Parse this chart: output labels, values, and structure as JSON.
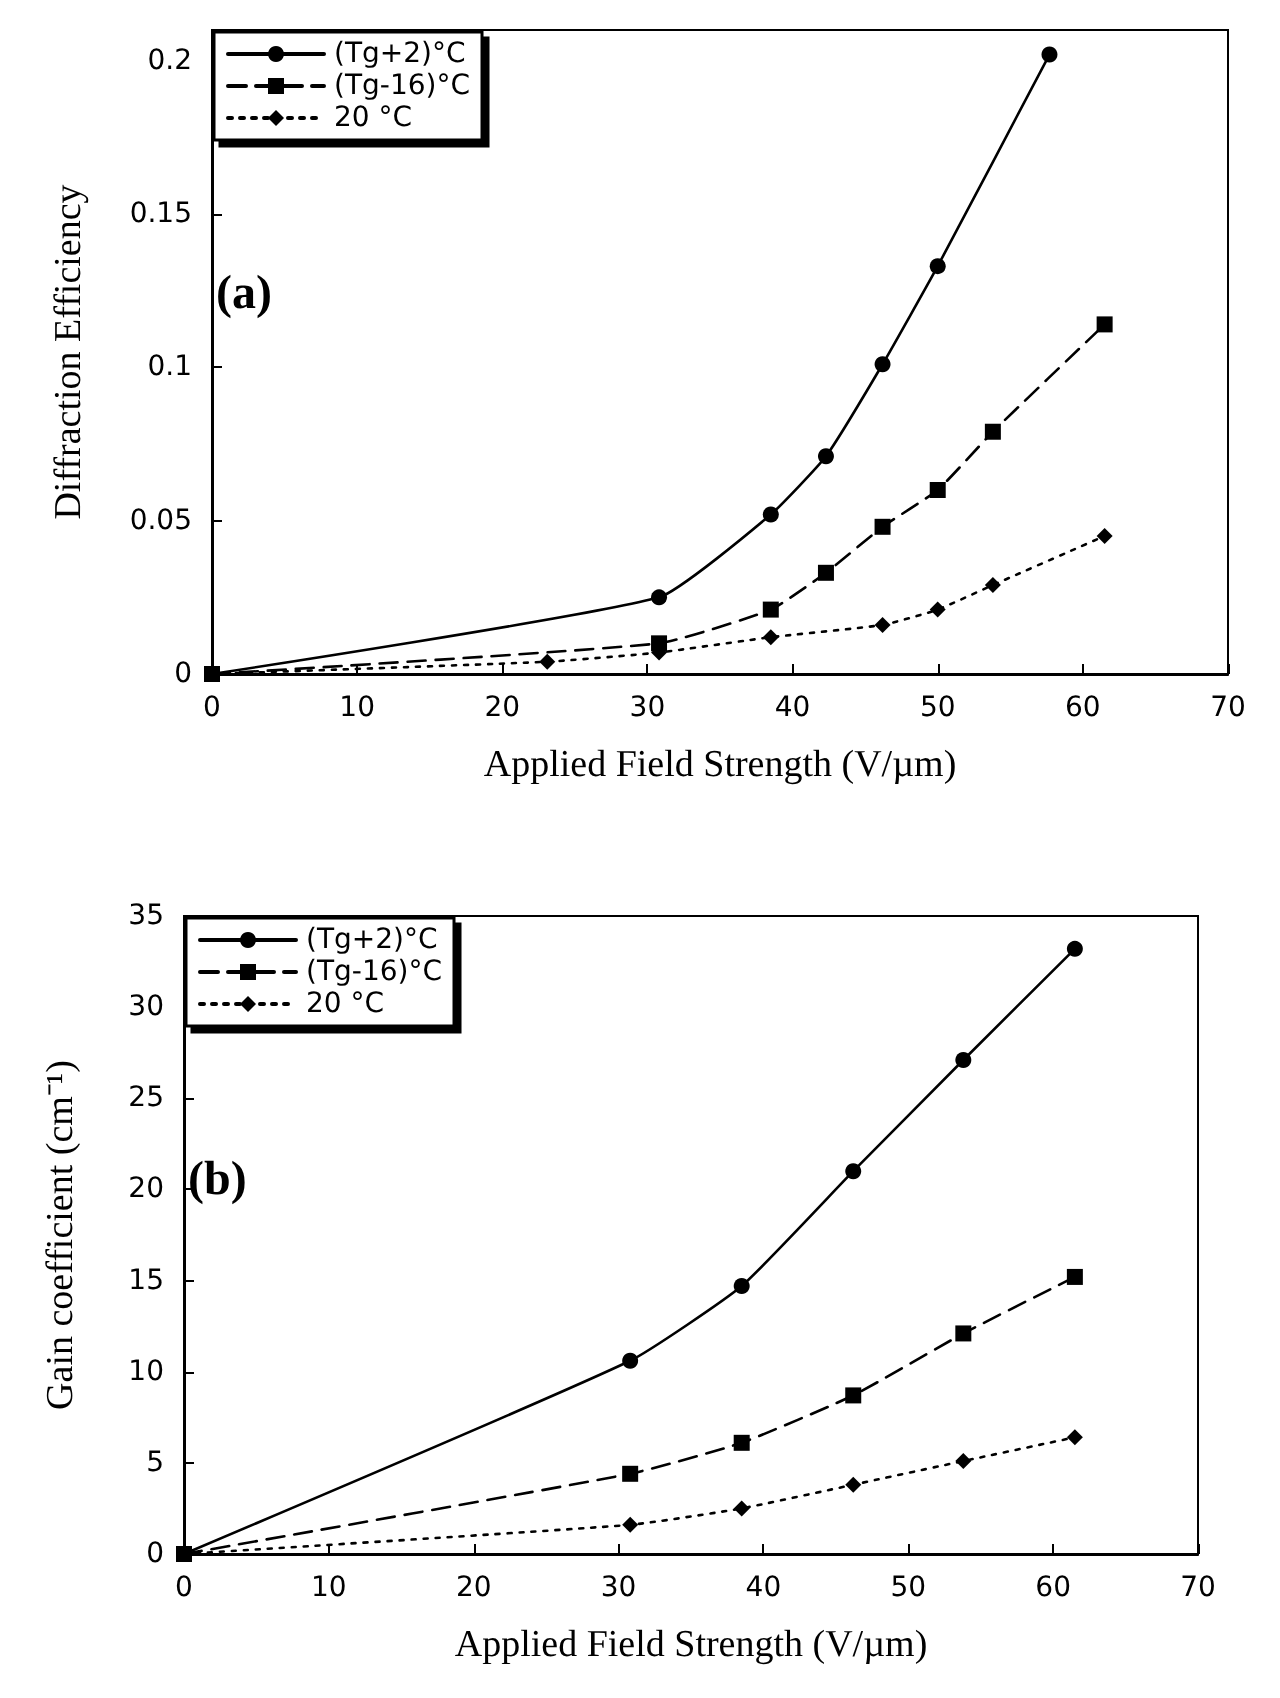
{
  "chart_data": [
    {
      "type": "line",
      "xlabel": "Applied Field Strength (V/µm)",
      "ylabel": "Diffraction Efficiency",
      "annotations": [
        "(a)"
      ],
      "xlim": [
        0,
        70
      ],
      "xticks": [
        0,
        10,
        20,
        30,
        40,
        50,
        60,
        70
      ],
      "ylim": [
        0,
        0.21
      ],
      "yticks": [
        0,
        0.05,
        0.1,
        0.15,
        0.2
      ],
      "grid": false,
      "legend": "top left",
      "series": [
        {
          "name": "(Tg+2)°C",
          "color": "#000000",
          "marker": "circle",
          "line_style": "solid",
          "x": [
            0,
            30.8,
            38.5,
            42.3,
            46.2,
            50,
            57.7
          ],
          "values": [
            0,
            0.025,
            0.052,
            0.071,
            0.101,
            0.133,
            0.202
          ]
        },
        {
          "name": "(Tg-16)°C",
          "color": "#000000",
          "marker": "square",
          "line_style": "dashed",
          "x": [
            0,
            30.8,
            38.5,
            42.3,
            46.2,
            50,
            53.8,
            61.5
          ],
          "values": [
            0,
            0.01,
            0.021,
            0.033,
            0.048,
            0.06,
            0.079,
            0.114
          ]
        },
        {
          "name": "20 °C",
          "color": "#000000",
          "marker": "diamond",
          "line_style": "dotted",
          "x": [
            0,
            23.1,
            30.8,
            38.5,
            46.2,
            50,
            53.8,
            61.5
          ],
          "values": [
            0,
            0.004,
            0.007,
            0.012,
            0.016,
            0.021,
            0.029,
            0.045
          ]
        }
      ]
    },
    {
      "type": "line",
      "xlabel": "Applied Field Strength (V/µm)",
      "ylabel": "Gain coefficient (cm⁻¹)",
      "annotations": [
        "(b)"
      ],
      "xlim": [
        0,
        70
      ],
      "xticks": [
        0,
        10,
        20,
        30,
        40,
        50,
        60,
        70
      ],
      "ylim": [
        0,
        35
      ],
      "yticks": [
        0,
        5,
        10,
        15,
        20,
        25,
        30,
        35
      ],
      "grid": false,
      "legend": "top left",
      "series": [
        {
          "name": "(Tg+2)°C",
          "color": "#000000",
          "marker": "circle",
          "line_style": "solid",
          "x": [
            0,
            30.8,
            38.5,
            46.2,
            53.8,
            61.5
          ],
          "values": [
            0,
            10.6,
            14.7,
            21,
            27.1,
            33.2
          ]
        },
        {
          "name": "(Tg-16)°C",
          "color": "#000000",
          "marker": "square",
          "line_style": "dashed",
          "x": [
            0,
            30.8,
            38.5,
            46.2,
            53.8,
            61.5
          ],
          "values": [
            0,
            4.4,
            6.1,
            8.7,
            12.1,
            15.2
          ]
        },
        {
          "name": "20 °C",
          "color": "#000000",
          "marker": "diamond",
          "line_style": "dotted",
          "x": [
            0,
            30.8,
            38.5,
            46.2,
            53.8,
            61.5
          ],
          "values": [
            0,
            1.6,
            2.5,
            3.8,
            5.1,
            6.4
          ]
        }
      ]
    }
  ]
}
